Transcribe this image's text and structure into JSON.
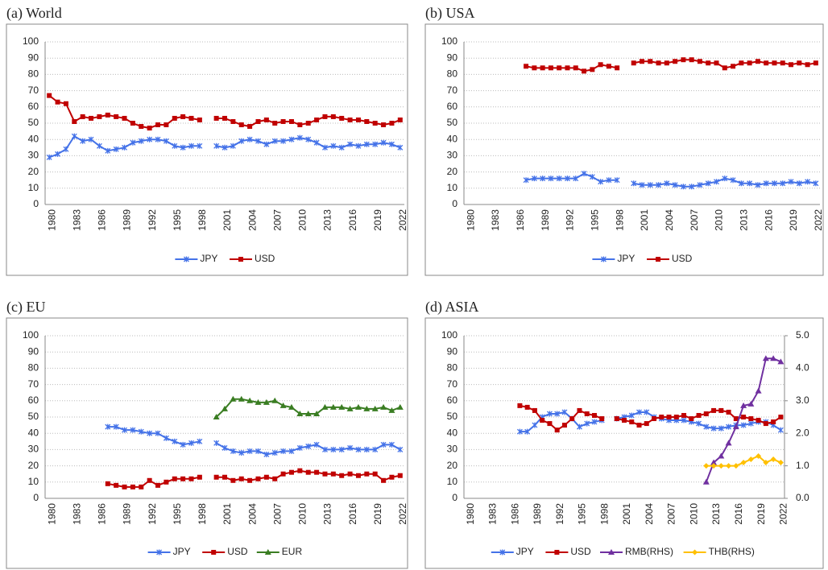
{
  "chart_data": [
    {
      "type": "line",
      "title": "(a) World",
      "categories": [
        "1980",
        null,
        null,
        "1983",
        null,
        null,
        "1986",
        null,
        null,
        "1989",
        null,
        null,
        "1992",
        null,
        null,
        "1995",
        null,
        null,
        "1998",
        null,
        null,
        "2001",
        null,
        null,
        "2004",
        null,
        null,
        "2007",
        null,
        null,
        "2010",
        null,
        null,
        "2013",
        null,
        null,
        "2016",
        null,
        null,
        "2019",
        null,
        null,
        "2022"
      ],
      "series": [
        {
          "name": "JPY",
          "color": "#4472e8",
          "marker": "asterisk",
          "values": [
            29,
            31,
            34,
            42,
            39,
            40,
            36,
            33,
            34,
            35,
            38,
            39,
            40,
            40,
            39,
            36,
            35,
            36,
            36,
            null,
            36,
            35,
            36,
            39,
            40,
            39,
            37,
            39,
            39,
            40,
            41,
            40,
            38,
            35,
            36,
            35,
            37,
            36,
            37,
            37,
            38,
            37,
            35
          ]
        },
        {
          "name": "USD",
          "color": "#c00000",
          "marker": "square",
          "values": [
            67,
            63,
            62,
            51,
            54,
            53,
            54,
            55,
            54,
            53,
            50,
            48,
            47,
            49,
            49,
            53,
            54,
            53,
            52,
            null,
            53,
            53,
            51,
            49,
            48,
            51,
            52,
            50,
            51,
            51,
            49,
            50,
            52,
            54,
            54,
            53,
            52,
            52,
            51,
            50,
            49,
            50,
            52
          ]
        }
      ],
      "ylim": [
        0,
        100
      ],
      "yticks": [
        0,
        10,
        20,
        30,
        40,
        50,
        60,
        70,
        80,
        90,
        100
      ],
      "grid": true,
      "legend": "bottom"
    },
    {
      "type": "line",
      "title": "(b) USA",
      "categories": [
        "1980",
        null,
        null,
        "1983",
        null,
        null,
        "1986",
        null,
        null,
        "1989",
        null,
        null,
        "1992",
        null,
        null,
        "1995",
        null,
        null,
        "1998",
        null,
        null,
        "2001",
        null,
        null,
        "2004",
        null,
        null,
        "2007",
        null,
        null,
        "2010",
        null,
        null,
        "2013",
        null,
        null,
        "2016",
        null,
        null,
        "2019",
        null,
        null,
        "2022"
      ],
      "series": [
        {
          "name": "JPY",
          "color": "#4472e8",
          "marker": "asterisk",
          "values": [
            null,
            null,
            null,
            null,
            null,
            null,
            null,
            15,
            16,
            16,
            16,
            16,
            16,
            16,
            19,
            17,
            14,
            15,
            15,
            null,
            13,
            12,
            12,
            12,
            13,
            12,
            11,
            11,
            12,
            13,
            14,
            16,
            15,
            13,
            13,
            12,
            13,
            13,
            13,
            14,
            13,
            14,
            13
          ]
        },
        {
          "name": "USD",
          "color": "#c00000",
          "marker": "square",
          "values": [
            null,
            null,
            null,
            null,
            null,
            null,
            null,
            85,
            84,
            84,
            84,
            84,
            84,
            84,
            82,
            83,
            86,
            85,
            84,
            null,
            87,
            88,
            88,
            87,
            87,
            88,
            89,
            89,
            88,
            87,
            87,
            84,
            85,
            87,
            87,
            88,
            87,
            87,
            87,
            86,
            87,
            86,
            87
          ]
        }
      ],
      "ylim": [
        0,
        100
      ],
      "yticks": [
        0,
        10,
        20,
        30,
        40,
        50,
        60,
        70,
        80,
        90,
        100
      ],
      "grid": true,
      "legend": "bottom"
    },
    {
      "type": "line",
      "title": "(c) EU",
      "categories": [
        "1980",
        null,
        null,
        "1983",
        null,
        null,
        "1986",
        null,
        null,
        "1989",
        null,
        null,
        "1992",
        null,
        null,
        "1995",
        null,
        null,
        "1998",
        null,
        null,
        "2001",
        null,
        null,
        "2004",
        null,
        null,
        "2007",
        null,
        null,
        "2010",
        null,
        null,
        "2013",
        null,
        null,
        "2016",
        null,
        null,
        "2019",
        null,
        null,
        "2022"
      ],
      "series": [
        {
          "name": "JPY",
          "color": "#4472e8",
          "marker": "asterisk",
          "values": [
            null,
            null,
            null,
            null,
            null,
            null,
            null,
            44,
            44,
            42,
            42,
            41,
            40,
            40,
            37,
            35,
            33,
            34,
            35,
            null,
            34,
            31,
            29,
            28,
            29,
            29,
            27,
            28,
            29,
            29,
            31,
            32,
            33,
            30,
            30,
            30,
            31,
            30,
            30,
            30,
            33,
            33,
            30
          ]
        },
        {
          "name": "USD",
          "color": "#c00000",
          "marker": "square",
          "values": [
            null,
            null,
            null,
            null,
            null,
            null,
            null,
            9,
            8,
            7,
            7,
            7,
            11,
            8,
            10,
            12,
            12,
            12,
            13,
            null,
            13,
            13,
            11,
            12,
            11,
            12,
            13,
            12,
            15,
            16,
            17,
            16,
            16,
            15,
            15,
            14,
            15,
            14,
            15,
            15,
            11,
            13,
            14
          ]
        },
        {
          "name": "EUR",
          "color": "#3a7d22",
          "marker": "triangle",
          "values": [
            null,
            null,
            null,
            null,
            null,
            null,
            null,
            null,
            null,
            null,
            null,
            null,
            null,
            null,
            null,
            null,
            null,
            null,
            null,
            null,
            50,
            55,
            61,
            61,
            60,
            59,
            59,
            60,
            57,
            56,
            52,
            52,
            52,
            56,
            56,
            56,
            55,
            56,
            55,
            55,
            56,
            54,
            56
          ]
        }
      ],
      "ylim": [
        0,
        100
      ],
      "yticks": [
        0,
        10,
        20,
        30,
        40,
        50,
        60,
        70,
        80,
        90,
        100
      ],
      "grid": true,
      "legend": "bottom"
    },
    {
      "type": "line",
      "title": "(d) ASIA",
      "categories": [
        "1980",
        null,
        null,
        "1983",
        null,
        null,
        "1986",
        null,
        null,
        "1989",
        null,
        null,
        "1992",
        null,
        null,
        "1995",
        null,
        null,
        "1998",
        null,
        null,
        "2001",
        null,
        null,
        "2004",
        null,
        null,
        "2007",
        null,
        null,
        "2010",
        null,
        null,
        "2013",
        null,
        null,
        "2016",
        null,
        null,
        "2019",
        null,
        null,
        "2022"
      ],
      "series": [
        {
          "name": "JPY",
          "color": "#4472e8",
          "marker": "asterisk",
          "values": [
            null,
            null,
            null,
            null,
            null,
            null,
            null,
            41,
            41,
            45,
            50,
            52,
            52,
            53,
            49,
            44,
            46,
            47,
            48,
            null,
            49,
            50,
            51,
            53,
            53,
            50,
            49,
            48,
            48,
            48,
            47,
            46,
            44,
            43,
            43,
            44,
            45,
            45,
            46,
            47,
            47,
            45,
            42
          ]
        },
        {
          "name": "USD",
          "color": "#c00000",
          "marker": "square",
          "values": [
            null,
            null,
            null,
            null,
            null,
            null,
            null,
            57,
            56,
            54,
            48,
            46,
            42,
            45,
            49,
            54,
            52,
            51,
            49,
            null,
            49,
            48,
            47,
            45,
            46,
            49,
            50,
            50,
            50,
            51,
            49,
            51,
            52,
            54,
            54,
            53,
            49,
            50,
            49,
            48,
            46,
            47,
            50
          ]
        },
        {
          "name": "RMB(RHS)",
          "color": "#7030a0",
          "marker": "triangle",
          "axis": "y2",
          "values": [
            null,
            null,
            null,
            null,
            null,
            null,
            null,
            null,
            null,
            null,
            null,
            null,
            null,
            null,
            null,
            null,
            null,
            null,
            null,
            null,
            null,
            null,
            null,
            null,
            null,
            null,
            null,
            null,
            null,
            null,
            null,
            null,
            0.5,
            1.1,
            1.3,
            1.7,
            2.2,
            2.85,
            2.9,
            3.3,
            4.3,
            4.3,
            4.2
          ]
        },
        {
          "name": "THB(RHS)",
          "color": "#ffc000",
          "marker": "diamond",
          "axis": "y2",
          "values": [
            null,
            null,
            null,
            null,
            null,
            null,
            null,
            null,
            null,
            null,
            null,
            null,
            null,
            null,
            null,
            null,
            null,
            null,
            null,
            null,
            null,
            null,
            null,
            null,
            null,
            null,
            null,
            null,
            null,
            null,
            null,
            null,
            1.0,
            1.0,
            1.0,
            1.0,
            1.0,
            1.1,
            1.2,
            1.3,
            1.1,
            1.2,
            1.1
          ]
        }
      ],
      "ylim": [
        0,
        100
      ],
      "yticks": [
        0,
        10,
        20,
        30,
        40,
        50,
        60,
        70,
        80,
        90,
        100
      ],
      "y2lim": [
        0,
        5
      ],
      "y2ticks": [
        {
          "value": 0,
          "label": "0.0"
        },
        {
          "value": 1,
          "label": "1.0"
        },
        {
          "value": 2,
          "label": "2.0"
        },
        {
          "value": 3,
          "label": "3.0"
        },
        {
          "value": 4,
          "label": "4.0"
        },
        {
          "value": 5,
          "label": "5.0"
        }
      ],
      "grid": true,
      "legend": "bottom"
    }
  ]
}
